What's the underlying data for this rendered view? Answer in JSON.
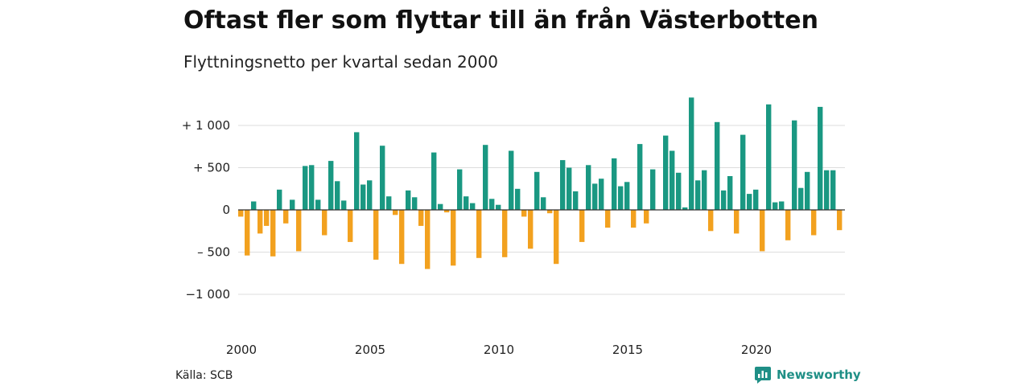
{
  "header": {
    "title": "Oftast fler som flyttar till än från Västerbotten",
    "subtitle": "Flyttningsnetto per kvartal sedan 2000"
  },
  "footer": {
    "source": "Källa: SCB",
    "brand": "Newsworthy"
  },
  "colors": {
    "positive": "#1a9882",
    "negative": "#f2a11f",
    "grid": "#dddddd",
    "zero_line": "#333333",
    "brand": "#1f8f86"
  },
  "chart_data": {
    "type": "bar",
    "title": "Oftast fler som flyttar till än från Västerbotten",
    "subtitle": "Flyttningsnetto per kvartal sedan 2000",
    "xlabel": "",
    "ylabel": "",
    "ylim": [
      -1200,
      1400
    ],
    "grid": true,
    "y_ticks": [
      {
        "value": 1000,
        "label": "+ 1 000"
      },
      {
        "value": 500,
        "label": "+   500"
      },
      {
        "value": 0,
        "label": "0"
      },
      {
        "value": -500,
        "label": "– 500"
      },
      {
        "value": -1000,
        "label": "−1 000"
      }
    ],
    "x_ticks": [
      {
        "value": 2000,
        "label": "2000"
      },
      {
        "value": 2005,
        "label": "2005"
      },
      {
        "value": 2010,
        "label": "2010"
      },
      {
        "value": 2015,
        "label": "2015"
      },
      {
        "value": 2020,
        "label": "2020"
      }
    ],
    "x_start": 2000,
    "periods_per_year": 4,
    "values": [
      -80,
      -540,
      100,
      -280,
      -190,
      -550,
      240,
      -160,
      120,
      -490,
      520,
      530,
      120,
      -300,
      580,
      340,
      110,
      -380,
      920,
      300,
      350,
      -590,
      760,
      160,
      -60,
      -640,
      230,
      150,
      -190,
      -700,
      680,
      70,
      -30,
      -660,
      480,
      160,
      80,
      -570,
      770,
      130,
      60,
      -560,
      700,
      250,
      -80,
      -460,
      450,
      150,
      -40,
      -640,
      590,
      500,
      220,
      -380,
      530,
      310,
      370,
      -210,
      610,
      280,
      330,
      -210,
      780,
      -160,
      480,
      0,
      880,
      700,
      440,
      30,
      1330,
      350,
      470,
      -250,
      1040,
      230,
      400,
      -280,
      890,
      190,
      240,
      -490,
      1250,
      90,
      100,
      -360,
      1060,
      260,
      450,
      -300,
      1220,
      470,
      470,
      -240
    ]
  }
}
